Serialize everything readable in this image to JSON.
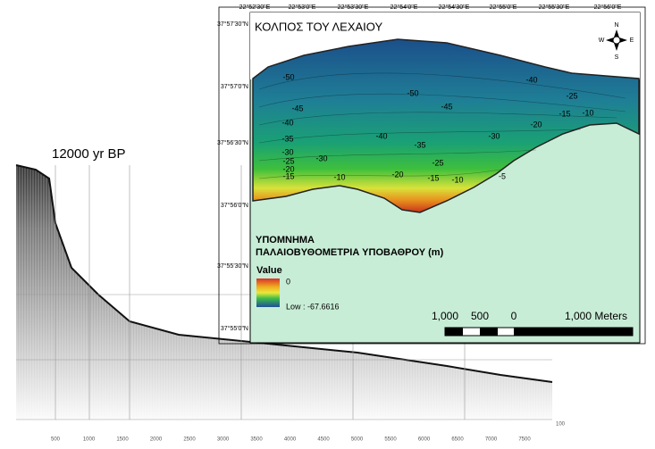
{
  "profile": {
    "label": "12000 yr BP",
    "x_labels": [
      "500",
      "1000",
      "1500",
      "2000",
      "2500",
      "3000",
      "3500",
      "4000",
      "4500",
      "5000",
      "5500",
      "6000",
      "6500",
      "7000",
      "7500"
    ],
    "depth_label": "100"
  },
  "map": {
    "title": "ΚΟΛΠΟΣ ΤΟΥ ΛΕΧΑΙΟΥ",
    "lon_labels": [
      "22°52'30\"E",
      "22°53'0\"E",
      "22°53'30\"E",
      "22°54'0\"E",
      "22°54'30\"E",
      "22°55'0\"E",
      "22°55'30\"E",
      "22°56'0\"E"
    ],
    "lat_labels": [
      "37°57'30\"N",
      "37°57'0\"N",
      "37°56'30\"N",
      "37°56'0\"N",
      "37°55'30\"N",
      "37°55'0\"N"
    ],
    "contour_labels": [
      "-50",
      "-45",
      "-40",
      "-35",
      "-30",
      "-25",
      "-20",
      "-15",
      "-50",
      "-45",
      "-40",
      "-35",
      "-30",
      "-25",
      "-20",
      "-15",
      "-10",
      "-10",
      "-5",
      "-30",
      "-20",
      "-40",
      "-25",
      "-15",
      "-10"
    ],
    "compass": {
      "n": "N",
      "e": "E",
      "s": "S",
      "w": "W"
    },
    "legend": {
      "heading": "ΥΠΟΜΝΗΜΑ",
      "subtitle": "ΠΑΛΑΙΟΒΥΘΟΜΕΤΡΙΑ ΥΠΟΒΑΘΡΟΥ (m)",
      "value_title": "Value",
      "high": "0",
      "low": "Low : -67.6616"
    },
    "scale": {
      "labels": [
        "1,000",
        "500",
        "0",
        "1,000 Meters"
      ]
    }
  }
}
